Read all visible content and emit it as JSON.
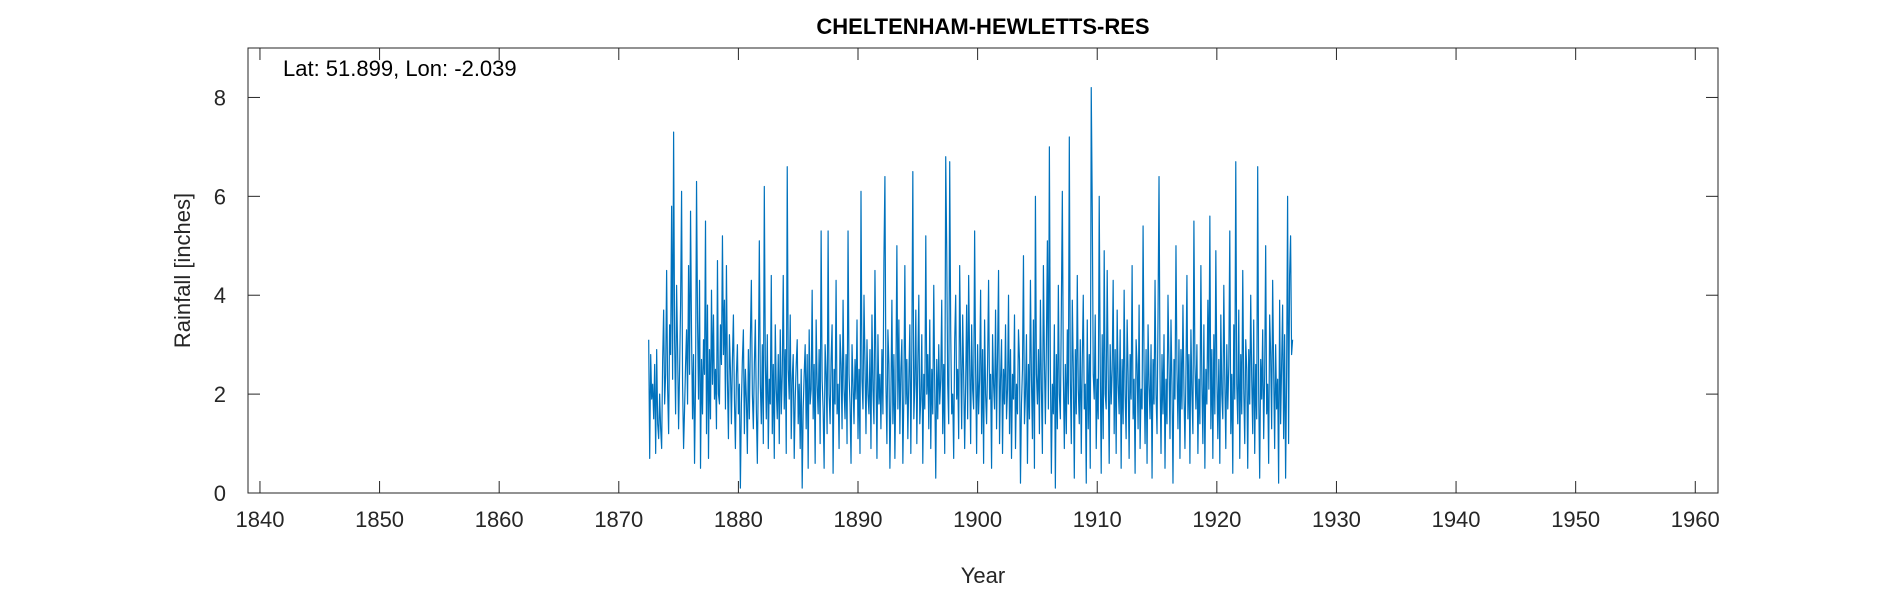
{
  "chart_data": {
    "type": "line",
    "title": "CHELTENHAM-HEWLETTS-RES",
    "annotation": "Lat: 51.899, Lon: -2.039",
    "xlabel": "Year",
    "ylabel": "Rainfall [inches]",
    "xlim": [
      1839,
      1961.9
    ],
    "ylim": [
      0,
      9
    ],
    "xticks": [
      1840,
      1850,
      1860,
      1870,
      1880,
      1890,
      1900,
      1910,
      1920,
      1930,
      1940,
      1950,
      1960
    ],
    "yticks": [
      0,
      2,
      4,
      6,
      8
    ],
    "grid": false,
    "series": [
      {
        "color": "#0072BD",
        "x_start": 1872.5,
        "x_step": 0.083333,
        "values": [
          3.1,
          0.7,
          2.8,
          1.9,
          2.2,
          1.5,
          2.6,
          0.8,
          2.9,
          1.4,
          1.1,
          2.0,
          1.3,
          0.9,
          2.7,
          3.7,
          1.8,
          2.4,
          4.5,
          2.1,
          1.2,
          3.4,
          2.8,
          5.8,
          2.3,
          7.3,
          3.1,
          1.6,
          4.2,
          2.9,
          1.3,
          2.5,
          3.8,
          6.1,
          2.2,
          0.9,
          1.7,
          2.6,
          3.3,
          1.8,
          4.6,
          2.4,
          5.7,
          3.2,
          1.5,
          2.8,
          0.6,
          2.2,
          6.3,
          3.5,
          1.9,
          4.3,
          0.5,
          2.7,
          1.6,
          3.1,
          2.4,
          5.5,
          1.2,
          3.8,
          0.7,
          2.9,
          1.5,
          4.1,
          2.2,
          3.6,
          1.9,
          2.5,
          1.3,
          4.7,
          2.0,
          1.8,
          3.4,
          2.6,
          5.2,
          2.8,
          3.9,
          1.7,
          4.6,
          2.3,
          1.1,
          3.2,
          2.5,
          1.4,
          2.7,
          3.6,
          1.9,
          0.9,
          2.4,
          3.0,
          1.6,
          2.2,
          0.1,
          1.8,
          2.7,
          3.3,
          1.2,
          2.5,
          1.9,
          0.8,
          2.9,
          1.5,
          3.1,
          4.3,
          2.0,
          1.3,
          2.6,
          3.5,
          1.7,
          0.6,
          2.4,
          5.1,
          2.2,
          1.4,
          3.0,
          1.0,
          6.2,
          2.7,
          1.5,
          3.2,
          0.9,
          2.3,
          1.8,
          4.4,
          1.2,
          2.6,
          0.7,
          3.4,
          2.1,
          1.5,
          2.8,
          1.0,
          3.3,
          1.6,
          2.4,
          4.4,
          1.7,
          2.9,
          0.8,
          6.6,
          2.5,
          1.9,
          3.6,
          1.1,
          2.3,
          2.8,
          0.7,
          1.9,
          2.6,
          3.1,
          1.4,
          2.2,
          0.9,
          2.5,
          0.1,
          1.7,
          2.4,
          3.0,
          1.3,
          2.8,
          0.5,
          3.3,
          1.8,
          2.1,
          4.1,
          1.5,
          2.6,
          0.6,
          3.5,
          2.2,
          1.6,
          2.9,
          1.0,
          5.3,
          2.3,
          1.7,
          0.5,
          3.0,
          2.4,
          1.2,
          5.3,
          2.0,
          1.4,
          2.7,
          3.4,
          0.4,
          2.5,
          1.8,
          4.3,
          1.6,
          2.2,
          0.9,
          3.2,
          2.6,
          1.3,
          3.9,
          2.1,
          1.5,
          2.8,
          1.0,
          5.3,
          2.4,
          1.8,
          0.6,
          3.0,
          2.2,
          1.4,
          2.7,
          1.9,
          3.5,
          1.1,
          2.5,
          0.8,
          6.1,
          2.3,
          1.7,
          4.0,
          2.6,
          1.2,
          3.1,
          2.0,
          1.6,
          2.9,
          0.9,
          3.6,
          2.1,
          1.4,
          4.5,
          2.5,
          0.7,
          3.2,
          1.8,
          2.4,
          1.3,
          2.9,
          1.6,
          4.7,
          6.4,
          2.2,
          1.0,
          3.3,
          2.6,
          0.5,
          1.9,
          3.9,
          1.4,
          2.8,
          0.7,
          2.3,
          5.0,
          1.7,
          3.5,
          1.2,
          2.5,
          3.1,
          0.6,
          2.0,
          4.6,
          1.8,
          2.7,
          1.1,
          2.3,
          3.4,
          0.8,
          2.9,
          6.5,
          1.5,
          2.2,
          3.7,
          1.0,
          2.6,
          4.0,
          1.4,
          1.9,
          3.2,
          0.6,
          2.4,
          1.7,
          5.2,
          2.0,
          2.8,
          1.3,
          3.5,
          0.9,
          2.5,
          1.6,
          4.2,
          2.1,
          0.3,
          2.7,
          1.5,
          3.0,
          1.8,
          2.3,
          3.9,
          1.2,
          2.6,
          0.8,
          6.8,
          4.9,
          2.2,
          1.4,
          6.7,
          3.3,
          1.6,
          2.0,
          0.7,
          3.1,
          4.0,
          1.9,
          2.5,
          1.1,
          4.6,
          2.8,
          1.3,
          3.6,
          2.4,
          0.9,
          2.2,
          3.8,
          1.5,
          4.4,
          2.7,
          1.0,
          3.4,
          2.1,
          1.7,
          5.3,
          2.5,
          0.8,
          3.0,
          1.6,
          2.3,
          4.1,
          1.2,
          2.9,
          0.6,
          3.5,
          2.0,
          1.4,
          2.6,
          4.3,
          1.9,
          2.4,
          0.5,
          3.2,
          2.2,
          1.7,
          3.7,
          1.3,
          2.8,
          4.5,
          1.0,
          2.3,
          3.1,
          0.8,
          2.5,
          1.8,
          3.4,
          1.5,
          2.1,
          4.0,
          1.2,
          2.9,
          0.7,
          2.4,
          1.9,
          3.6,
          0.9,
          2.2,
          1.6,
          3.3,
          2.7,
          0.2,
          1.8,
          2.5,
          4.8,
          1.4,
          2.0,
          3.2,
          0.6,
          2.6,
          1.5,
          4.3,
          2.3,
          1.1,
          3.5,
          0.5,
          6.0,
          2.4,
          1.8,
          2.9,
          1.2,
          3.9,
          2.1,
          0.8,
          4.6,
          2.7,
          1.4,
          3.0,
          5.1,
          1.7,
          7.0,
          2.5,
          0.4,
          2.2,
          1.6,
          3.4,
          0.1,
          2.8,
          1.3,
          4.2,
          2.0,
          1.5,
          3.7,
          6.1,
          2.4,
          0.9,
          2.6,
          1.2,
          3.3,
          1.8,
          7.2,
          2.3,
          1.0,
          3.9,
          2.5,
          0.3,
          2.9,
          1.6,
          4.4,
          2.1,
          1.4,
          3.1,
          0.8,
          2.7,
          4.0,
          1.7,
          2.2,
          0.2,
          3.5,
          1.3,
          2.8,
          0.5,
          8.2,
          5.8,
          2.4,
          1.9,
          3.6,
          0.9,
          2.3,
          1.5,
          6.0,
          2.6,
          0.4,
          3.2,
          1.1,
          4.9,
          2.0,
          1.7,
          4.5,
          2.4,
          0.6,
          3.0,
          1.8,
          2.5,
          4.3,
          1.2,
          2.9,
          0.8,
          3.7,
          2.2,
          1.6,
          3.3,
          0.5,
          2.7,
          1.4,
          4.1,
          2.0,
          1.1,
          3.5,
          2.4,
          0.7,
          2.8,
          1.9,
          4.6,
          1.5,
          2.3,
          0.4,
          3.1,
          2.6,
          1.3,
          3.8,
          0.9,
          2.1,
          1.7,
          5.4,
          2.5,
          1.0,
          2.9,
          0.6,
          3.4,
          2.2,
          1.5,
          3.0,
          0.3,
          2.7,
          1.8,
          4.3,
          2.0,
          1.2,
          3.6,
          6.4,
          2.4,
          0.8,
          2.8,
          1.6,
          3.2,
          0.5,
          2.3,
          1.4,
          4.0,
          2.6,
          1.1,
          3.5,
          2.2,
          0.2,
          2.7,
          1.9,
          5.0,
          2.5,
          1.3,
          3.1,
          0.7,
          2.9,
          1.7,
          3.8,
          2.1,
          0.9,
          2.4,
          4.4,
          1.5,
          2.8,
          0.6,
          3.3,
          2.0,
          1.2,
          5.5,
          2.6,
          1.7,
          3.0,
          0.8,
          2.3,
          1.4,
          4.6,
          2.2,
          1.0,
          3.4,
          0.5,
          2.5,
          1.8,
          3.9,
          2.1,
          5.6,
          1.3,
          2.9,
          0.7,
          3.2,
          1.6,
          4.9,
          2.4,
          1.1,
          2.7,
          0.6,
          3.6,
          2.0,
          1.5,
          4.2,
          2.3,
          0.9,
          3.0,
          1.7,
          2.6,
          5.3,
          1.2,
          2.4,
          0.4,
          3.4,
          1.9,
          6.7,
          2.2,
          1.4,
          3.7,
          0.7,
          2.8,
          1.6,
          4.5,
          2.1,
          1.0,
          3.1,
          2.5,
          0.5,
          2.9,
          1.8,
          4.0,
          2.3,
          1.2,
          3.5,
          0.8,
          2.6,
          1.5,
          6.6,
          2.0,
          0.3,
          2.7,
          1.9,
          3.3,
          1.1,
          2.4,
          5.0,
          1.6,
          2.2,
          0.6,
          3.6,
          2.8,
          1.3,
          4.3,
          2.5,
          0.9,
          3.0,
          1.7,
          2.3,
          0.2,
          3.9,
          1.4,
          2.6,
          3.8,
          1.1,
          3.2,
          0.3,
          2.4,
          6.0,
          1.0,
          4.4,
          5.2,
          2.8,
          3.1
        ]
      }
    ]
  }
}
